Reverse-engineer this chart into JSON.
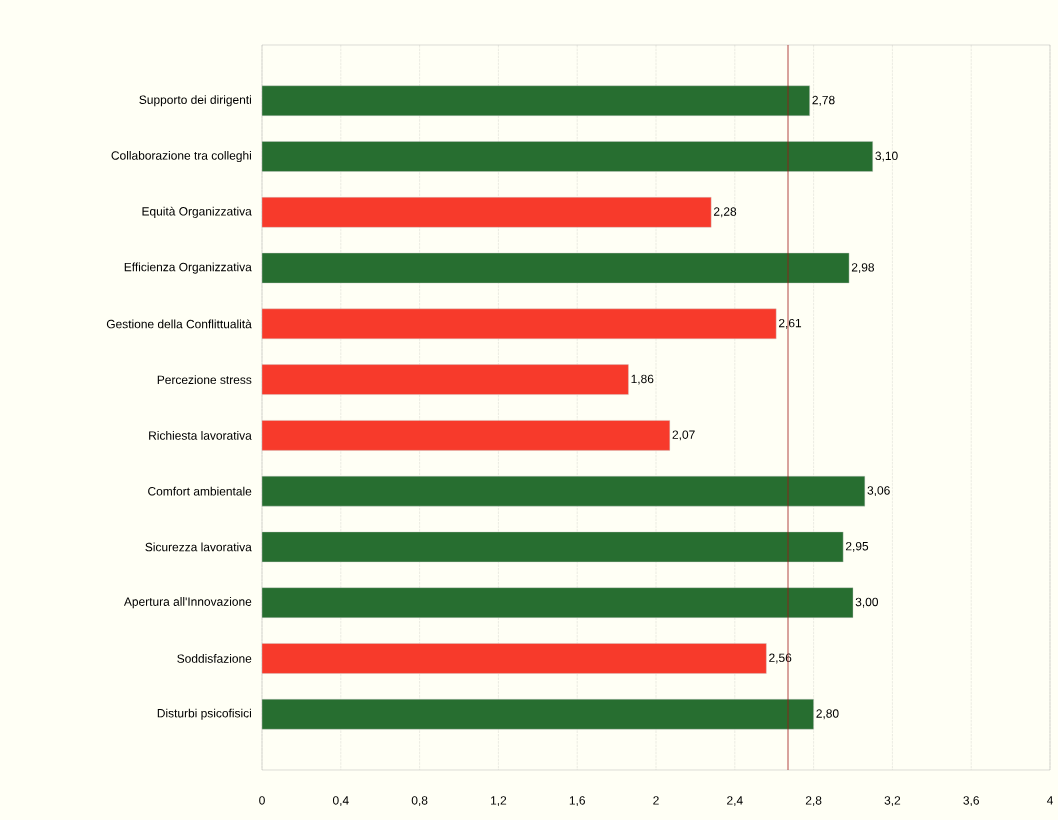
{
  "chart_data": {
    "type": "bar",
    "orientation": "horizontal",
    "categories": [
      "Supporto dei dirigenti",
      "Collaborazione tra colleghi",
      "Equità Organizzativa",
      "Efficienza Organizzativa",
      "Gestione della Conflittualità",
      "Percezione stress",
      "Richiesta lavorativa",
      "Comfort ambientale",
      "Sicurezza lavorativa",
      "Apertura all'Innovazione",
      "Soddisfazione",
      "Disturbi psicofisici"
    ],
    "values": [
      2.78,
      3.1,
      2.28,
      2.98,
      2.61,
      1.86,
      2.07,
      3.06,
      2.95,
      3.0,
      2.56,
      2.8
    ],
    "value_labels": [
      "2,78",
      "3,10",
      "2,28",
      "2,98",
      "2,61",
      "1,86",
      "2,07",
      "3,06",
      "2,95",
      "3,00",
      "2,56",
      "2,80"
    ],
    "colors": [
      "#276e30",
      "#276e30",
      "#f73a2b",
      "#276e30",
      "#f73a2b",
      "#f73a2b",
      "#f73a2b",
      "#276e30",
      "#276e30",
      "#276e30",
      "#f73a2b",
      "#276e30"
    ],
    "xlim": [
      0,
      4
    ],
    "xticks": [
      0,
      {
        "value": 0.4,
        "label": "0,4"
      },
      {
        "value": 0.8,
        "label": "0,8"
      },
      {
        "value": 1.2,
        "label": "1,2"
      },
      {
        "value": 1.6,
        "label": "1,6"
      },
      2,
      {
        "value": 2.4,
        "label": "2,4"
      },
      {
        "value": 2.8,
        "label": "2,8"
      },
      {
        "value": 3.2,
        "label": "3,2"
      },
      {
        "value": 3.6,
        "label": "3,6"
      },
      4
    ],
    "grid": "x",
    "ref_lines": [
      {
        "axis": "x",
        "value": 2.67,
        "color": "#a01818"
      }
    ]
  }
}
